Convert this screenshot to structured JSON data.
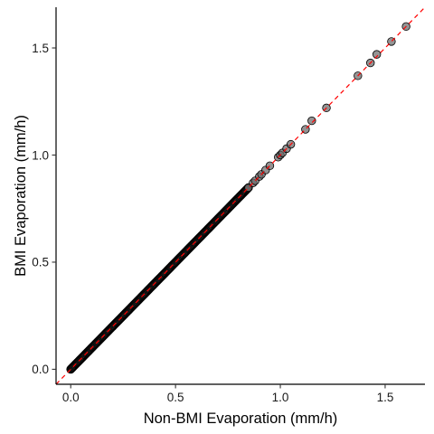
{
  "chart_data": {
    "type": "scatter",
    "title": "",
    "xlabel": "Non-BMI Evaporation (mm/h)",
    "ylabel": "BMI Evaporation (mm/h)",
    "xlim": [
      -0.07,
      1.69
    ],
    "ylim": [
      -0.07,
      1.69
    ],
    "x_ticks": [
      0.0,
      0.5,
      1.0,
      1.5
    ],
    "x_tick_labels": [
      "0.0",
      "0.5",
      "1.0",
      "1.5"
    ],
    "y_ticks": [
      0.0,
      0.5,
      1.0,
      1.5
    ],
    "y_tick_labels": [
      "0.0",
      "0.5",
      "1.0",
      "1.5"
    ],
    "grid": false,
    "legend": "none",
    "reference_line": {
      "type": "identity",
      "slope": 1,
      "intercept": 0,
      "color": "#ff0000",
      "style": "dashed"
    },
    "point_style": {
      "fill": "#666666",
      "stroke": "#000000",
      "opacity": 0.7
    },
    "dense_range": [
      0.0,
      0.85
    ],
    "series": [
      {
        "x": [
          0.87,
          0.88,
          0.9,
          0.91,
          0.93,
          0.95,
          0.99,
          1.0,
          1.01,
          1.03,
          1.05,
          1.12,
          1.15,
          1.22,
          1.37,
          1.43,
          1.46,
          1.53,
          1.6
        ],
        "y": [
          0.87,
          0.88,
          0.9,
          0.91,
          0.93,
          0.95,
          0.99,
          1.0,
          1.01,
          1.03,
          1.05,
          1.12,
          1.16,
          1.22,
          1.37,
          1.43,
          1.47,
          1.53,
          1.6
        ]
      }
    ]
  }
}
